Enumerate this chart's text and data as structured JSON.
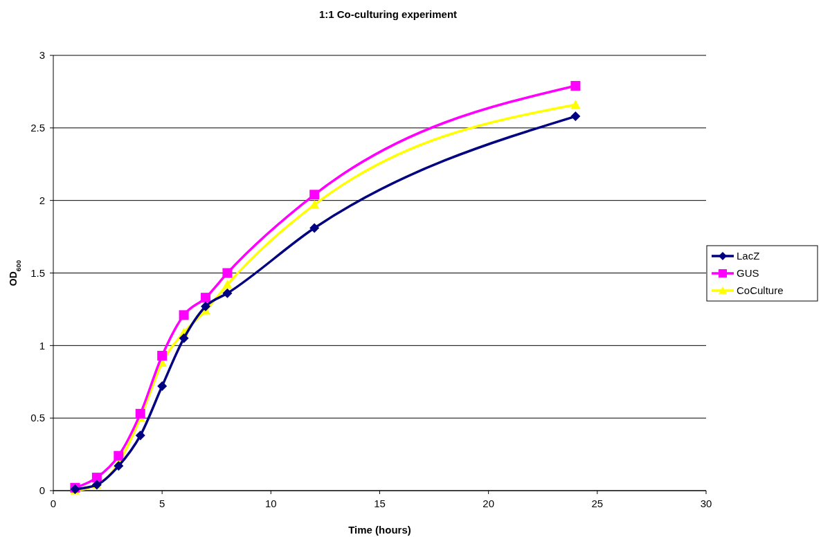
{
  "chart_data": {
    "type": "line",
    "title": "1:1 Co-culturing experiment",
    "xlabel": "Time (hours)",
    "ylabel": "OD$_{600}$",
    "x": [
      1,
      2,
      3,
      4,
      5,
      6,
      7,
      8,
      12,
      24
    ],
    "series": [
      {
        "name": "LacZ",
        "color": "#000080",
        "marker": "diamond",
        "values": [
          0.01,
          0.04,
          0.17,
          0.38,
          0.72,
          1.05,
          1.27,
          1.36,
          1.81,
          2.58
        ]
      },
      {
        "name": "GUS",
        "color": "#ff00ff",
        "marker": "square",
        "values": [
          0.02,
          0.09,
          0.24,
          0.53,
          0.93,
          1.21,
          1.33,
          1.5,
          2.04,
          2.79
        ]
      },
      {
        "name": "CoCulture",
        "color": "#ffff00",
        "marker": "triangle",
        "values": [
          0.0,
          0.04,
          0.19,
          0.5,
          0.88,
          1.09,
          1.24,
          1.42,
          1.97,
          2.66
        ]
      }
    ],
    "xlim": [
      0,
      30
    ],
    "xticks": [
      0,
      5,
      10,
      15,
      20,
      25,
      30
    ],
    "ylim": [
      0,
      3
    ],
    "yticks": [
      0,
      0.5,
      1,
      1.5,
      2,
      2.5,
      3
    ],
    "grid": "y",
    "legend": "right",
    "line_style": "solid"
  }
}
